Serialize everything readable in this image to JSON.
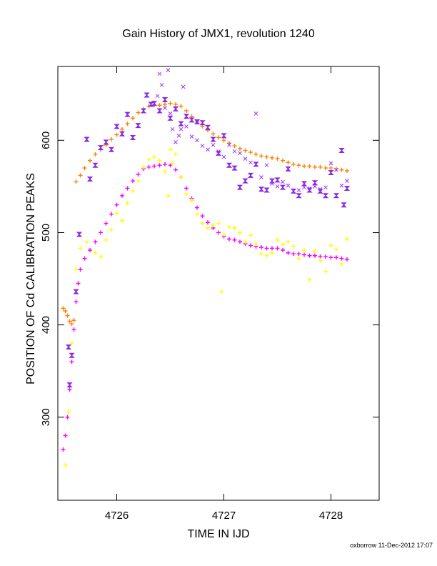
{
  "chart_data": {
    "type": "scatter",
    "title": "Gain History of JMX1, revolution 1240",
    "xlabel": "TIME IN IJD",
    "ylabel": "POSITION OF Cd CALIBRATION PEAKS",
    "xlim": [
      4725.45,
      4728.45
    ],
    "ylim": [
      210,
      680
    ],
    "xticks": [
      4726,
      4727,
      4728
    ],
    "yticks": [
      300,
      400,
      500,
      600
    ],
    "grid": false,
    "series": [
      {
        "color": "#ff8000",
        "marker": "plus",
        "points": [
          [
            4725.5,
            418
          ],
          [
            4725.52,
            415
          ],
          [
            4725.54,
            410
          ],
          [
            4725.56,
            404
          ],
          [
            4725.58,
            401
          ],
          [
            4725.6,
            405
          ],
          [
            4725.62,
            555
          ],
          [
            4725.66,
            562
          ],
          [
            4725.7,
            570
          ],
          [
            4725.75,
            578
          ],
          [
            4725.8,
            585
          ],
          [
            4725.85,
            590
          ],
          [
            4725.9,
            595
          ],
          [
            4725.95,
            601
          ],
          [
            4726,
            606
          ],
          [
            4726.05,
            612
          ],
          [
            4726.1,
            618
          ],
          [
            4726.15,
            624
          ],
          [
            4726.2,
            630
          ],
          [
            4726.25,
            634
          ],
          [
            4726.3,
            637
          ],
          [
            4726.35,
            638
          ],
          [
            4726.4,
            638
          ],
          [
            4726.45,
            639
          ],
          [
            4726.5,
            640
          ],
          [
            4726.55,
            639
          ],
          [
            4726.6,
            637
          ],
          [
            4726.65,
            632
          ],
          [
            4726.7,
            626
          ],
          [
            4726.75,
            620
          ],
          [
            4726.8,
            615
          ],
          [
            4726.85,
            611
          ],
          [
            4726.9,
            607
          ],
          [
            4726.95,
            603
          ],
          [
            4727,
            600
          ],
          [
            4727.05,
            597
          ],
          [
            4727.1,
            594
          ],
          [
            4727.15,
            591
          ],
          [
            4727.2,
            589
          ],
          [
            4727.25,
            587
          ],
          [
            4727.3,
            585
          ],
          [
            4727.35,
            583
          ],
          [
            4727.4,
            582
          ],
          [
            4727.45,
            581
          ],
          [
            4727.5,
            580
          ],
          [
            4727.55,
            578
          ],
          [
            4727.6,
            576
          ],
          [
            4727.65,
            574
          ],
          [
            4727.7,
            573
          ],
          [
            4727.75,
            572
          ],
          [
            4727.8,
            572
          ],
          [
            4727.85,
            571
          ],
          [
            4727.9,
            571
          ],
          [
            4727.95,
            570
          ],
          [
            4728,
            570
          ],
          [
            4728.05,
            569
          ],
          [
            4728.1,
            568
          ],
          [
            4728.15,
            567
          ]
        ]
      },
      {
        "color": "#ff00ff",
        "marker": "plus",
        "points": [
          [
            4725.5,
            265
          ],
          [
            4725.52,
            280
          ],
          [
            4725.54,
            300
          ],
          [
            4725.56,
            330
          ],
          [
            4725.58,
            360
          ],
          [
            4725.6,
            395
          ],
          [
            4725.62,
            425
          ],
          [
            4725.64,
            445
          ],
          [
            4725.66,
            460
          ],
          [
            4725.7,
            472
          ],
          [
            4725.75,
            481
          ],
          [
            4725.8,
            490
          ],
          [
            4725.85,
            500
          ],
          [
            4725.9,
            510
          ],
          [
            4725.95,
            520
          ],
          [
            4726,
            530
          ],
          [
            4726.05,
            540
          ],
          [
            4726.1,
            548
          ],
          [
            4726.15,
            556
          ],
          [
            4726.2,
            563
          ],
          [
            4726.25,
            569
          ],
          [
            4726.3,
            571
          ],
          [
            4726.35,
            572
          ],
          [
            4726.4,
            573
          ],
          [
            4726.45,
            574
          ],
          [
            4726.5,
            573
          ],
          [
            4726.55,
            568
          ],
          [
            4726.6,
            560
          ],
          [
            4726.65,
            548
          ],
          [
            4726.7,
            537
          ],
          [
            4726.75,
            527
          ],
          [
            4726.8,
            518
          ],
          [
            4726.85,
            511
          ],
          [
            4726.9,
            505
          ],
          [
            4726.95,
            500
          ],
          [
            4727,
            496
          ],
          [
            4727.05,
            493
          ],
          [
            4727.1,
            492
          ],
          [
            4727.15,
            490
          ],
          [
            4727.2,
            488
          ],
          [
            4727.25,
            486
          ],
          [
            4727.3,
            485
          ],
          [
            4727.35,
            484
          ],
          [
            4727.4,
            483
          ],
          [
            4727.45,
            483
          ],
          [
            4727.5,
            483
          ],
          [
            4727.55,
            481
          ],
          [
            4727.6,
            478
          ],
          [
            4727.65,
            477
          ],
          [
            4727.7,
            477
          ],
          [
            4727.75,
            476
          ],
          [
            4727.8,
            475
          ],
          [
            4727.85,
            475
          ],
          [
            4727.9,
            474
          ],
          [
            4727.95,
            474
          ],
          [
            4728,
            473
          ],
          [
            4728.05,
            473
          ],
          [
            4728.1,
            472
          ],
          [
            4728.15,
            471
          ]
        ]
      },
      {
        "color": "#8a2be2",
        "marker": "bowtie",
        "points": [
          [
            4725.55,
            376
          ],
          [
            4725.56,
            335
          ],
          [
            4725.58,
            367
          ],
          [
            4725.62,
            436
          ],
          [
            4725.65,
            498
          ],
          [
            4725.72,
            601
          ],
          [
            4725.75,
            558
          ],
          [
            4725.8,
            573
          ],
          [
            4725.85,
            592
          ],
          [
            4725.9,
            598
          ],
          [
            4725.95,
            590
          ],
          [
            4726,
            615
          ],
          [
            4726.05,
            607
          ],
          [
            4726.1,
            628
          ],
          [
            4726.15,
            603
          ],
          [
            4726.2,
            616
          ],
          [
            4726.25,
            632
          ],
          [
            4726.28,
            649
          ],
          [
            4726.32,
            639
          ],
          [
            4726.35,
            640
          ],
          [
            4726.4,
            632
          ],
          [
            4726.45,
            644
          ],
          [
            4726.5,
            624
          ],
          [
            4726.55,
            634
          ],
          [
            4726.6,
            618
          ],
          [
            4726.65,
            626
          ],
          [
            4726.7,
            622
          ],
          [
            4726.75,
            620
          ],
          [
            4726.8,
            619
          ],
          [
            4726.85,
            614
          ],
          [
            4726.9,
            601
          ],
          [
            4726.95,
            586
          ],
          [
            4727,
            605
          ],
          [
            4727.05,
            573
          ],
          [
            4727.1,
            570
          ],
          [
            4727.15,
            549
          ],
          [
            4727.2,
            556
          ],
          [
            4727.25,
            562
          ],
          [
            4727.3,
            574
          ],
          [
            4727.35,
            547
          ],
          [
            4727.4,
            546
          ],
          [
            4727.45,
            556
          ],
          [
            4727.5,
            557
          ],
          [
            4727.55,
            549
          ],
          [
            4727.6,
            569
          ],
          [
            4727.65,
            545
          ],
          [
            4727.7,
            540
          ],
          [
            4727.75,
            553
          ],
          [
            4727.8,
            546
          ],
          [
            4727.85,
            554
          ],
          [
            4727.9,
            545
          ],
          [
            4727.95,
            540
          ],
          [
            4728,
            565
          ],
          [
            4728.05,
            540
          ],
          [
            4728.1,
            589
          ],
          [
            4728.12,
            530
          ],
          [
            4728.15,
            548
          ]
        ]
      },
      {
        "color": "#9b30ff",
        "marker": "x",
        "points": [
          [
            4726.38,
            648
          ],
          [
            4726.4,
            672
          ],
          [
            4726.42,
            660
          ],
          [
            4726.45,
            635
          ],
          [
            4726.48,
            676
          ],
          [
            4726.5,
            629
          ],
          [
            4726.52,
            612
          ],
          [
            4726.55,
            598
          ],
          [
            4726.58,
            605
          ],
          [
            4726.6,
            612
          ],
          [
            4726.62,
            658
          ],
          [
            4726.65,
            615
          ],
          [
            4726.7,
            604
          ],
          [
            4726.75,
            600
          ],
          [
            4726.8,
            594
          ],
          [
            4726.85,
            590
          ],
          [
            4726.9,
            595
          ],
          [
            4726.95,
            588
          ],
          [
            4727,
            582
          ],
          [
            4727.05,
            595
          ],
          [
            4727.1,
            588
          ],
          [
            4727.15,
            586
          ],
          [
            4727.2,
            580
          ],
          [
            4727.25,
            576
          ],
          [
            4727.3,
            629
          ],
          [
            4727.35,
            560
          ],
          [
            4727.4,
            573
          ],
          [
            4727.45,
            553
          ],
          [
            4727.5,
            550
          ],
          [
            4727.55,
            555
          ],
          [
            4727.6,
            551
          ],
          [
            4727.65,
            545
          ],
          [
            4727.7,
            546
          ],
          [
            4727.75,
            549
          ],
          [
            4727.8,
            548
          ],
          [
            4727.85,
            550
          ],
          [
            4727.9,
            547
          ],
          [
            4727.95,
            549
          ],
          [
            4728,
            575
          ],
          [
            4728.05,
            568
          ],
          [
            4728.1,
            551
          ],
          [
            4728.15,
            556
          ]
        ]
      },
      {
        "color": "#ffff00",
        "marker": "plus",
        "points": [
          [
            4725.52,
            248
          ],
          [
            4725.55,
            306
          ],
          [
            4725.58,
            380
          ],
          [
            4725.62,
            460
          ],
          [
            4725.66,
            483
          ],
          [
            4725.72,
            490
          ],
          [
            4725.8,
            478
          ],
          [
            4725.85,
            474
          ],
          [
            4725.9,
            492
          ],
          [
            4725.95,
            503
          ],
          [
            4726,
            521
          ],
          [
            4726.05,
            513
          ],
          [
            4726.1,
            532
          ],
          [
            4726.15,
            545
          ],
          [
            4726.2,
            556
          ],
          [
            4726.25,
            571
          ],
          [
            4726.3,
            579
          ],
          [
            4726.35,
            582
          ],
          [
            4726.4,
            578
          ],
          [
            4726.45,
            566
          ],
          [
            4726.48,
            540
          ],
          [
            4726.5,
            590
          ],
          [
            4726.52,
            575
          ],
          [
            4726.55,
            585
          ],
          [
            4726.6,
            560
          ],
          [
            4726.65,
            542
          ],
          [
            4726.7,
            535
          ],
          [
            4726.75,
            520
          ],
          [
            4726.8,
            510
          ],
          [
            4726.85,
            505
          ],
          [
            4726.9,
            508
          ],
          [
            4726.95,
            510
          ],
          [
            4726.98,
            436
          ],
          [
            4727,
            498
          ],
          [
            4727.05,
            506
          ],
          [
            4727.1,
            505
          ],
          [
            4727.15,
            500
          ],
          [
            4727.2,
            490
          ],
          [
            4727.25,
            497
          ],
          [
            4727.3,
            488
          ],
          [
            4727.35,
            477
          ],
          [
            4727.4,
            475
          ],
          [
            4727.45,
            478
          ],
          [
            4727.5,
            492
          ],
          [
            4727.55,
            487
          ],
          [
            4727.6,
            490
          ],
          [
            4727.65,
            485
          ],
          [
            4727.7,
            472
          ],
          [
            4727.75,
            481
          ],
          [
            4727.8,
            449
          ],
          [
            4727.85,
            480
          ],
          [
            4727.9,
            470
          ],
          [
            4727.95,
            458
          ],
          [
            4728,
            486
          ],
          [
            4728.05,
            482
          ],
          [
            4728.1,
            466
          ],
          [
            4728.15,
            493
          ]
        ]
      }
    ]
  },
  "footer": "oxborrow 11-Dec-2012 17:07"
}
